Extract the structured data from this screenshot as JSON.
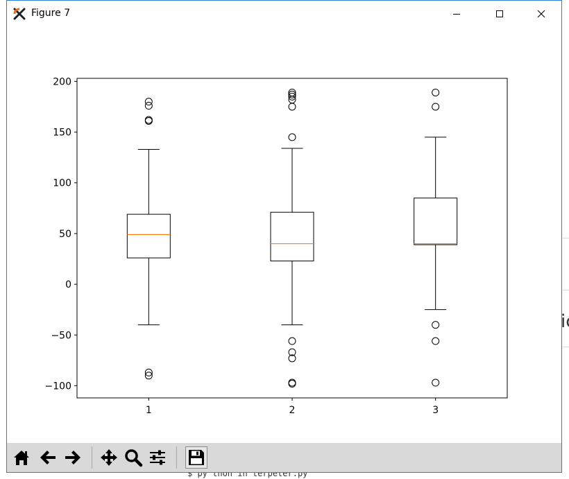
{
  "window": {
    "title": "Figure 7",
    "controls": {
      "minimize": "minimize",
      "maximize": "maximize",
      "close": "close"
    }
  },
  "toolbar": {
    "buttons": [
      {
        "name": "home",
        "icon": "home-icon"
      },
      {
        "name": "back",
        "icon": "arrow-left-icon"
      },
      {
        "name": "forward",
        "icon": "arrow-right-icon"
      },
      {
        "name": "pan",
        "icon": "move-icon"
      },
      {
        "name": "zoom",
        "icon": "magnifier-icon"
      },
      {
        "name": "subplots",
        "icon": "sliders-icon"
      },
      {
        "name": "save",
        "icon": "floppy-disk-icon"
      }
    ]
  },
  "background": {
    "partial_text": "$ py thon  in terpeter.py",
    "partial_glyph": "ic"
  },
  "chart_data": {
    "type": "boxplot",
    "title": "",
    "xlabel": "",
    "ylabel": "",
    "categories": [
      "1",
      "2",
      "3"
    ],
    "ylim": [
      -112,
      203
    ],
    "yticks": [
      200,
      150,
      100,
      50,
      0,
      -50,
      -100
    ],
    "ytick_labels": [
      "200",
      "150",
      "100",
      "50",
      "0",
      "−50",
      "−100"
    ],
    "grid": false,
    "colors": {
      "box": "#000000",
      "median": "#ff7f0e",
      "flier": "#000000"
    },
    "boxes": [
      {
        "label": "1",
        "whisker_low": -40,
        "q1": 26,
        "median": 49,
        "q3": 69,
        "whisker_high": 133,
        "fliers": [
          180,
          176,
          162,
          161,
          -87,
          -90
        ]
      },
      {
        "label": "2",
        "whisker_low": -40,
        "q1": 23,
        "median": 40,
        "q3": 71,
        "whisker_high": 134,
        "fliers": [
          189,
          187,
          185,
          182,
          175,
          145,
          -56,
          -67,
          -73,
          -97,
          -98
        ]
      },
      {
        "label": "3",
        "whisker_low": -25,
        "q1": 39,
        "median": 40,
        "q3": 85,
        "whisker_high": 145,
        "fliers": [
          189,
          175,
          -40,
          -56,
          -97
        ]
      }
    ]
  }
}
